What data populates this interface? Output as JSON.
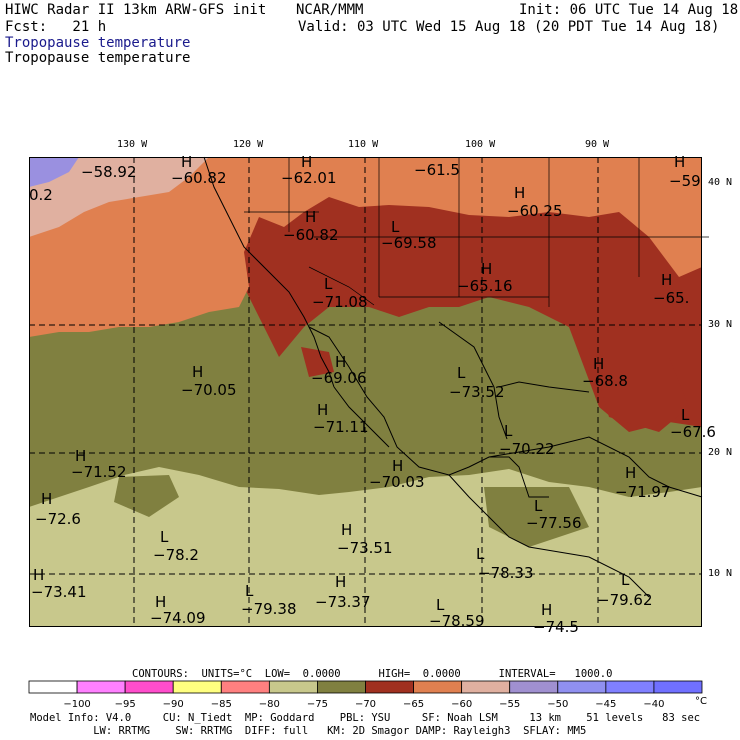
{
  "header": {
    "line1_left": "HIWC Radar II 13km ARW-GFS init",
    "line1_mid": "NCAR/MMM",
    "line1_right": "Init: 06 UTC Tue 14 Aug 18",
    "line2_left": "Fcst:   21 h",
    "line2_right": "Valid: 03 UTC Wed 15 Aug 18 (20 PDT Tue 14 Aug 18)",
    "field_colored": "Tropopause temperature",
    "field_plain": "Tropopause temperature"
  },
  "axes": {
    "lon_labels": [
      "130 W",
      "120 W",
      "110 W",
      "100 W",
      "90 W"
    ],
    "lat_labels": [
      "40 N",
      "30 N",
      "20 N",
      "10 N"
    ]
  },
  "map_labels": [
    {
      "kind": "",
      "value": "−58.92"
    },
    {
      "kind": "H",
      "value": "−60.82"
    },
    {
      "kind": "H",
      "value": "−62.01"
    },
    {
      "kind": "",
      "value": "−61.5"
    },
    {
      "kind": "H",
      "value": "−59"
    },
    {
      "kind": "",
      "value": "0.2"
    },
    {
      "kind": "H",
      "value": "−60.82"
    },
    {
      "kind": "L",
      "value": "−69.58"
    },
    {
      "kind": "H",
      "value": "−60.25"
    },
    {
      "kind": "L",
      "value": "−71.08"
    },
    {
      "kind": "H",
      "value": "−65.16"
    },
    {
      "kind": "H",
      "value": "−65."
    },
    {
      "kind": "H",
      "value": "−70.05"
    },
    {
      "kind": "H",
      "value": "−69.06"
    },
    {
      "kind": "L",
      "value": "−73.52"
    },
    {
      "kind": "H",
      "value": "−68.8"
    },
    {
      "kind": "H",
      "value": "−71.11"
    },
    {
      "kind": "L",
      "value": "−70.22"
    },
    {
      "kind": "L",
      "value": "−67.6"
    },
    {
      "kind": "H",
      "value": "−71.52"
    },
    {
      "kind": "H",
      "value": "−70.03"
    },
    {
      "kind": "H",
      "value": "−71.97"
    },
    {
      "kind": "H",
      "value": "−72.6"
    },
    {
      "kind": "L",
      "value": "−77.56"
    },
    {
      "kind": "L",
      "value": "−78.2"
    },
    {
      "kind": "H",
      "value": "−73.51"
    },
    {
      "kind": "L",
      "value": "−78.33"
    },
    {
      "kind": "H",
      "value": "−73.41"
    },
    {
      "kind": "H",
      "value": "−74.09"
    },
    {
      "kind": "L",
      "value": "−79.38"
    },
    {
      "kind": "H",
      "value": "−73.37"
    },
    {
      "kind": "L",
      "value": "−78.59"
    },
    {
      "kind": "L",
      "value": "−79.62"
    },
    {
      "kind": "H",
      "value": "−74.5"
    }
  ],
  "contours_line": "CONTOURS:  UNITS=°C  LOW=  0.0000      HIGH=  0.0000      INTERVAL=   1000.0",
  "colorbar": {
    "colors": [
      "#ffffff",
      "#ff80ff",
      "#ff4dcc",
      "#ffff80",
      "#ff8080",
      "#c8c88c",
      "#808040",
      "#a03020",
      "#e08050",
      "#e0b0a0",
      "#a090d0",
      "#9090f0",
      "#8080ff",
      "#7070ff"
    ],
    "ticks": [
      "−100",
      "−95",
      "−90",
      "−85",
      "−80",
      "−75",
      "−70",
      "−65",
      "−60",
      "−55",
      "−50",
      "−45",
      "−40"
    ],
    "unit": "°C"
  },
  "footer": {
    "line1": "Model Info: V4.0     CU: N_Tiedt  MP: Goddard    PBL: YSU     SF: Noah LSM     13 km    51 levels   83 sec",
    "line2": "          LW: RRTMG    SW: RRTMG  DIFF: full   KM: 2D Smagor DAMP: Rayleigh3  SFLAY: MM5"
  },
  "zone_colors": {
    "lt_purple": "#9a90e0",
    "pink": "#e0b0a0",
    "orange": "#e08050",
    "darkred": "#a03020",
    "olive": "#808040",
    "khaki": "#c8c88c"
  }
}
